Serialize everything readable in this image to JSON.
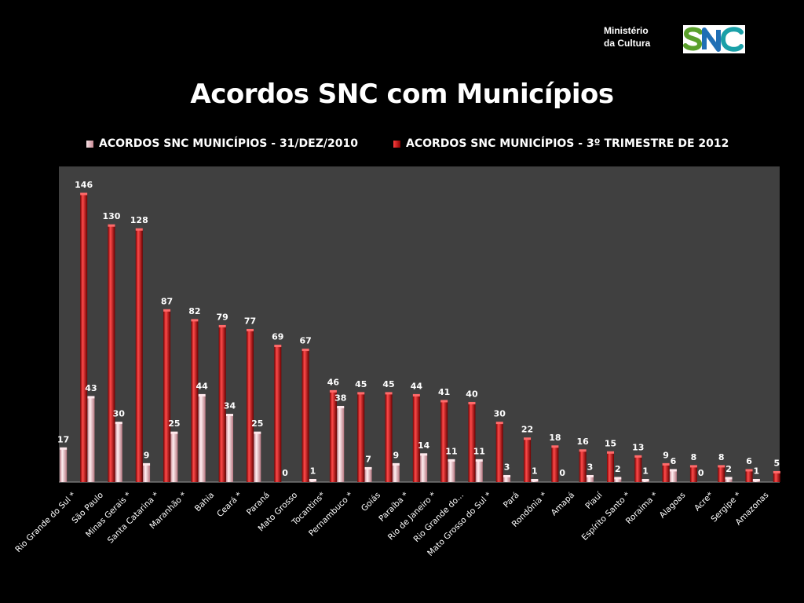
{
  "header": {
    "ministry_line1": "Ministério",
    "ministry_line2": "da Cultura",
    "logo_text": "SNC",
    "title": "Acordos SNC com Municípios"
  },
  "colors": {
    "background": "#000000",
    "plot_area": "#404040",
    "series_2010": "#e8c7cc",
    "series_2012": "#b01818"
  },
  "chart_data": {
    "type": "bar",
    "title": "Acordos SNC com Municípios",
    "xlabel": "",
    "ylabel": "",
    "grid": false,
    "legend_position": "top",
    "categories": [
      "Rio Grande do Sul *",
      "São Paulo",
      "Minas Gerais *",
      "Santa Catarina *",
      "Maranhão *",
      "Bahia",
      "Ceará *",
      "Paraná",
      "Mato Grosso",
      "Tocantins*",
      "Pernambuco *",
      "Goiás",
      "Paraíba *",
      "Rio de Janeiro *",
      "Rio Grande do...",
      "Mato Grosso do Sul *",
      "Pará",
      "Rondônia *",
      "Amapá",
      "Piauí",
      "Espírito Santo *",
      "Roraima *",
      "Alagoas",
      "Acre*",
      "Sergipe *",
      "Amazonas"
    ],
    "series": [
      {
        "name": "ACORDOS SNC MUNICÍPIOS - 31/DEZ/2010",
        "values": [
          17,
          43,
          30,
          9,
          25,
          44,
          34,
          25,
          0,
          1,
          38,
          7,
          9,
          14,
          11,
          11,
          3,
          1,
          0,
          3,
          2,
          1,
          6,
          0,
          2,
          1
        ]
      },
      {
        "name": "ACORDOS SNC MUNICÍPIOS - 3º TRIMESTRE DE 2012",
        "values": [
          146,
          130,
          128,
          87,
          82,
          79,
          77,
          69,
          67,
          46,
          45,
          45,
          44,
          41,
          40,
          30,
          22,
          18,
          16,
          15,
          13,
          9,
          8,
          8,
          6,
          5
        ]
      }
    ],
    "ylim": [
      0,
      160
    ]
  }
}
